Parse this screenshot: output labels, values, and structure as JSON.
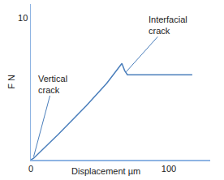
{
  "chart_data": {
    "type": "line",
    "x_label": "Displacement µm",
    "y_label": "F N",
    "x": [
      0,
      2,
      20,
      40,
      55,
      63,
      66,
      68,
      70,
      117
    ],
    "values": [
      0,
      0.1,
      1.8,
      3.8,
      5.4,
      6.4,
      6.8,
      6.3,
      6.0,
      6.0
    ],
    "color": "#4a7ebb",
    "xlim": [
      0,
      130
    ],
    "xticks": [
      0,
      100
    ],
    "ylim": [
      0,
      11
    ],
    "yticks": [
      10
    ],
    "grid": false,
    "annotations": [
      {
        "text": "Vertical\ncrack",
        "x": 2,
        "y": 0.2
      },
      {
        "text": "Interfacial\ncrack",
        "x": 69,
        "y": 6.2
      }
    ]
  }
}
